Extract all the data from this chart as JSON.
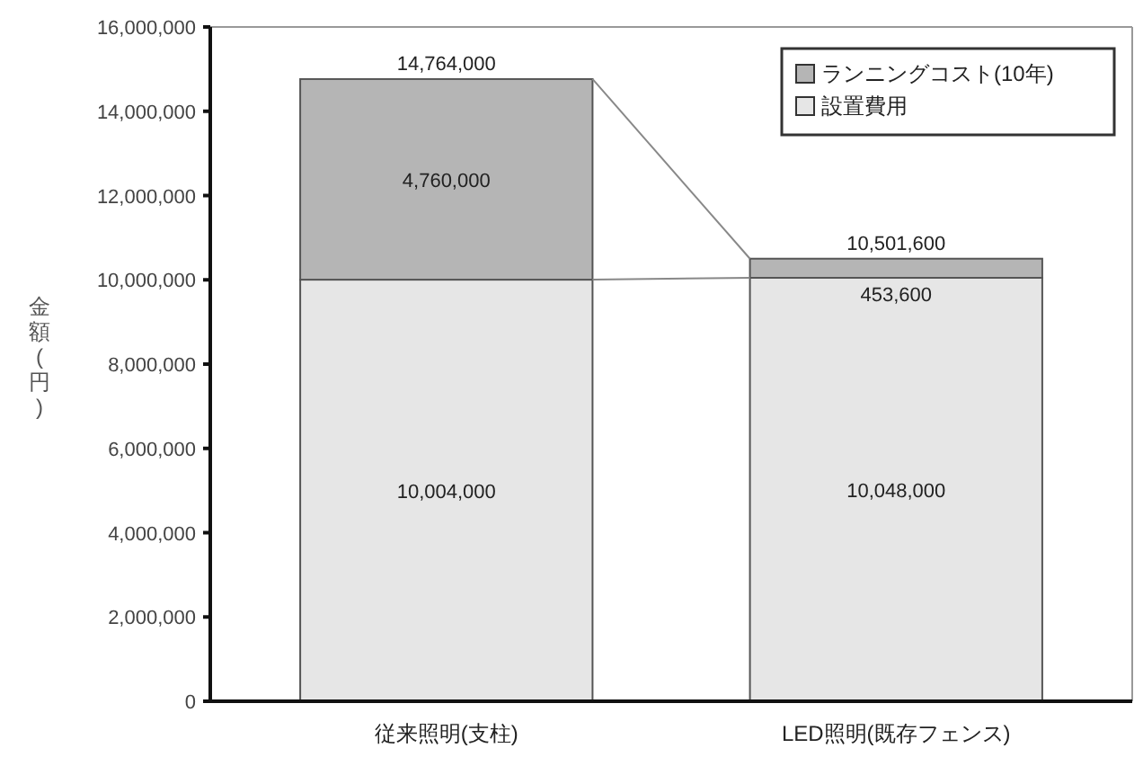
{
  "chart_data": {
    "type": "bar",
    "stacked": true,
    "ylabel": "金額(円)",
    "categories": [
      "従来照明(支柱)",
      "LED照明(既存フェンス)"
    ],
    "series": [
      {
        "name": "設置費用",
        "color": "#e6e6e6",
        "values": [
          10004000,
          10048000
        ],
        "value_labels": [
          "10,004,000",
          "10,048,000"
        ]
      },
      {
        "name": "ランニングコスト(10年)",
        "color": "#b5b5b5",
        "values": [
          4760000,
          453600
        ],
        "value_labels": [
          "4,760,000",
          "453,600"
        ]
      }
    ],
    "totals": [
      "14,764,000",
      "10,501,600"
    ],
    "ylim": [
      0,
      16000000
    ],
    "yticks": [
      0,
      {
        "value": 2000000,
        "label": "2,000,000"
      },
      {
        "value": 4000000,
        "label": "4,000,000"
      },
      {
        "value": 6000000,
        "label": "6,000,000"
      },
      {
        "value": 8000000,
        "label": "8,000,000"
      },
      {
        "value": 10000000,
        "label": "10,000,000"
      },
      {
        "value": 12000000,
        "label": "12,000,000"
      },
      {
        "value": 14000000,
        "label": "14,000,000"
      },
      {
        "value": 16000000,
        "label": "16,000,000"
      }
    ],
    "grid": false,
    "legend": "top right"
  }
}
